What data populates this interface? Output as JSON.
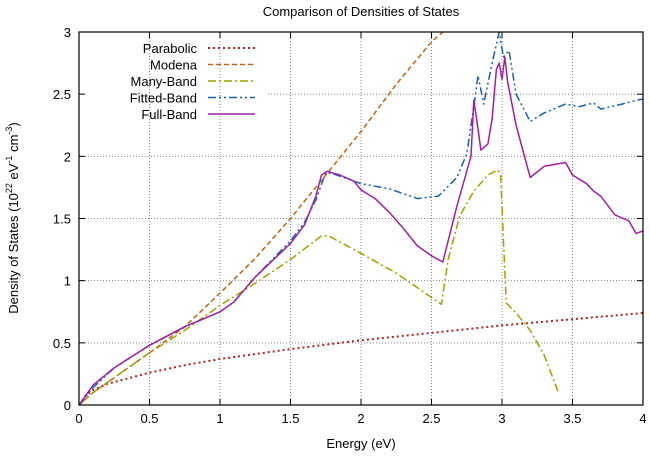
{
  "chart_data": {
    "type": "line",
    "title": "Comparison of Densities of States",
    "xlabel": "Energy (eV)",
    "ylabel": {
      "prefix": "Density of States (10",
      "exp1": "22",
      "mid": " eV",
      "exp2": "-1",
      "mid2": " cm",
      "exp3": "-3",
      "suffix": ")"
    },
    "xlim": [
      0,
      4
    ],
    "ylim": [
      0,
      3
    ],
    "xticks": [
      "0",
      "0.5",
      "1",
      "1.5",
      "2",
      "2.5",
      "3",
      "3.5",
      "4"
    ],
    "xtick_values": [
      0,
      0.5,
      1,
      1.5,
      2,
      2.5,
      3,
      3.5,
      4
    ],
    "yticks": [
      "0",
      "0.5",
      "1",
      "1.5",
      "2",
      "2.5",
      "3"
    ],
    "ytick_values": [
      0,
      0.5,
      1,
      1.5,
      2,
      2.5,
      3
    ],
    "grid": true,
    "legend_position": "top-left",
    "series": [
      {
        "name": "Parabolic",
        "color": "#b22222",
        "style": "dotted",
        "x": [
          0,
          0.05,
          0.1,
          0.2,
          0.3,
          0.5,
          0.75,
          1,
          1.5,
          2,
          2.5,
          3,
          3.5,
          4
        ],
        "y": [
          0,
          0.08,
          0.12,
          0.17,
          0.2,
          0.26,
          0.32,
          0.37,
          0.45,
          0.52,
          0.58,
          0.64,
          0.69,
          0.74
        ]
      },
      {
        "name": "Modena",
        "color": "#b8651b",
        "style": "dashed",
        "x": [
          0,
          0.1,
          0.25,
          0.5,
          0.75,
          1,
          1.25,
          1.5,
          1.75,
          2,
          2.25,
          2.5,
          2.58
        ],
        "y": [
          0,
          0.1,
          0.22,
          0.42,
          0.63,
          0.9,
          1.18,
          1.5,
          1.85,
          2.2,
          2.58,
          2.92,
          3.0
        ]
      },
      {
        "name": "Many-Band",
        "color": "#a0a000",
        "style": "dashdot",
        "x": [
          0,
          0.1,
          0.25,
          0.5,
          0.75,
          1,
          1.25,
          1.5,
          1.72,
          1.77,
          2,
          2.25,
          2.57,
          2.62,
          2.7,
          2.8,
          2.9,
          2.97,
          2.99,
          3.03,
          3.1,
          3.2,
          3.3,
          3.4
        ],
        "y": [
          0,
          0.1,
          0.22,
          0.42,
          0.6,
          0.8,
          0.98,
          1.17,
          1.36,
          1.36,
          1.22,
          1.06,
          0.81,
          1.18,
          1.52,
          1.72,
          1.85,
          1.89,
          1.85,
          0.82,
          0.74,
          0.6,
          0.4,
          0.1
        ]
      },
      {
        "name": "Fitted-Band",
        "color": "#1a5fa8",
        "style": "dashdotdot",
        "x": [
          0,
          0.1,
          0.25,
          0.5,
          0.75,
          1,
          1.1,
          1.25,
          1.5,
          1.6,
          1.68,
          1.75,
          1.8,
          2,
          2.2,
          2.4,
          2.55,
          2.68,
          2.75,
          2.8,
          2.83,
          2.87,
          2.93,
          2.98,
          3.01,
          3.05,
          3.1,
          3.2,
          3.3,
          3.45,
          3.55,
          3.65,
          3.7,
          3.85,
          3.95,
          4.0
        ],
        "y": [
          0,
          0.14,
          0.3,
          0.48,
          0.63,
          0.75,
          0.83,
          1.03,
          1.32,
          1.47,
          1.65,
          1.87,
          1.86,
          1.78,
          1.74,
          1.66,
          1.68,
          1.83,
          2.02,
          2.4,
          2.65,
          2.42,
          2.75,
          3.0,
          2.8,
          2.85,
          2.5,
          2.28,
          2.35,
          2.42,
          2.4,
          2.43,
          2.38,
          2.42,
          2.45,
          2.46
        ]
      },
      {
        "name": "Full-Band",
        "color": "#a020a0",
        "style": "solid",
        "x": [
          0,
          0.1,
          0.25,
          0.5,
          0.75,
          1,
          1.1,
          1.25,
          1.5,
          1.6,
          1.68,
          1.72,
          1.76,
          1.85,
          1.95,
          2.0,
          2.1,
          2.2,
          2.3,
          2.4,
          2.5,
          2.58,
          2.68,
          2.78,
          2.8,
          2.82,
          2.85,
          2.9,
          2.93,
          2.96,
          2.98,
          3.0,
          3.02,
          3.04,
          3.1,
          3.2,
          3.3,
          3.45,
          3.5,
          3.6,
          3.65,
          3.7,
          3.8,
          3.9,
          3.95,
          4.0
        ],
        "y": [
          0,
          0.16,
          0.3,
          0.48,
          0.63,
          0.75,
          0.83,
          1.03,
          1.3,
          1.45,
          1.68,
          1.85,
          1.88,
          1.85,
          1.8,
          1.73,
          1.66,
          1.55,
          1.42,
          1.28,
          1.2,
          1.15,
          1.6,
          2.0,
          2.45,
          2.3,
          2.05,
          2.1,
          2.3,
          2.7,
          2.75,
          2.62,
          2.8,
          2.6,
          2.25,
          1.83,
          1.92,
          1.95,
          1.85,
          1.78,
          1.72,
          1.68,
          1.53,
          1.48,
          1.38,
          1.4
        ]
      }
    ]
  }
}
